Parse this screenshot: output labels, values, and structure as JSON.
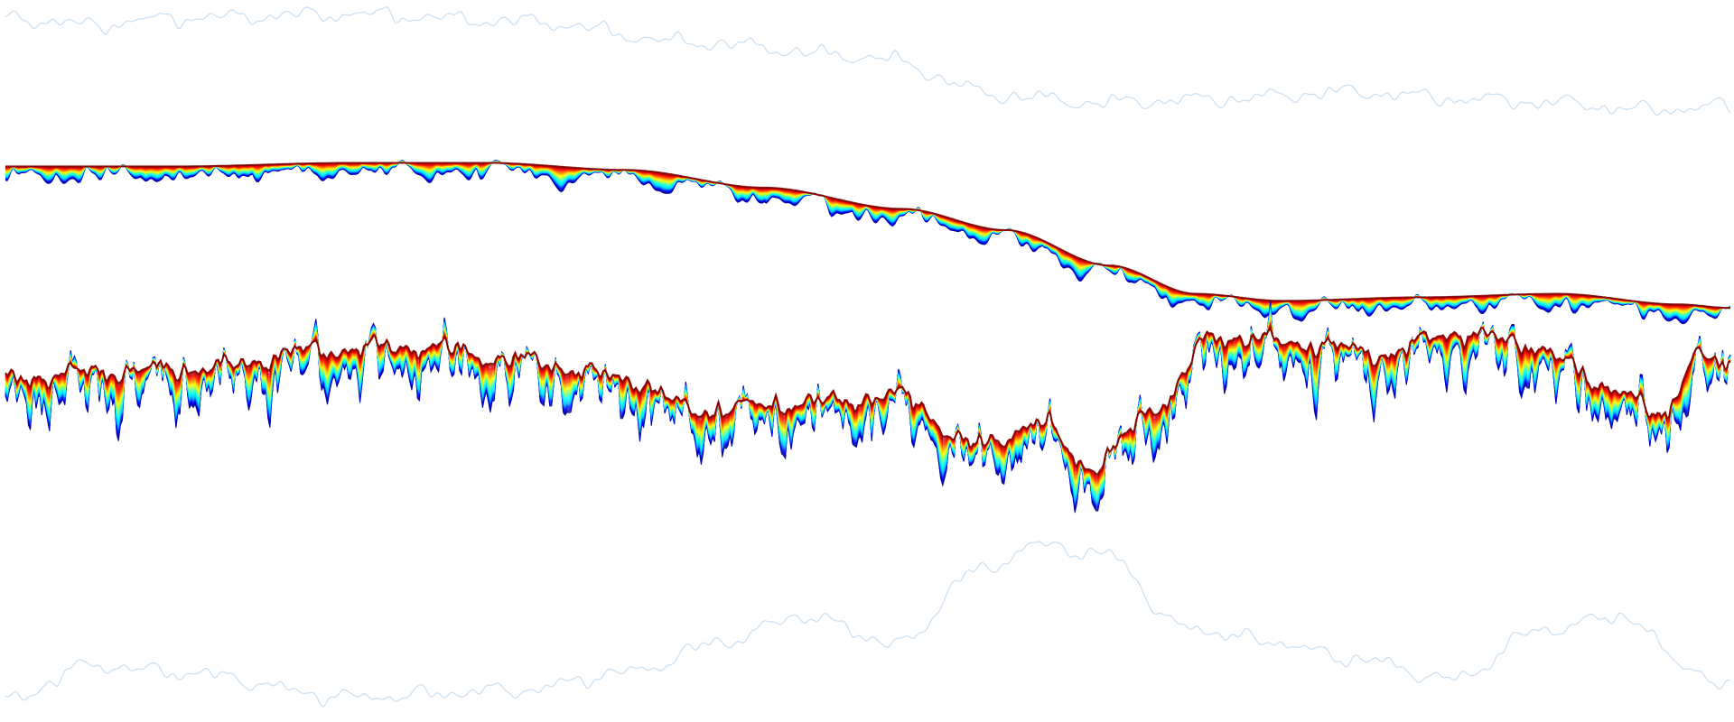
{
  "chart_data": {
    "type": "line",
    "title": "",
    "xlabel": "",
    "ylabel": "",
    "x_range": [
      0,
      1
    ],
    "y_range": [
      -1,
      1
    ],
    "grid": false,
    "legend": "none",
    "axes_visible": false,
    "colormap": "jet",
    "colormap_stops": [
      "#00007f",
      "#0000ff",
      "#00bfff",
      "#00ffff",
      "#7fff7f",
      "#ffff00",
      "#ff7f00",
      "#ff0000",
      "#7f0000"
    ],
    "background_trace_color": "#c9dff2",
    "groups": [
      {
        "name_shown": false,
        "kind": "smooth-sigmoid-band",
        "curve_count": 40,
        "trend": [
          [
            0.0,
            0.55
          ],
          [
            0.1,
            0.55
          ],
          [
            0.2,
            0.56
          ],
          [
            0.28,
            0.56
          ],
          [
            0.36,
            0.54
          ],
          [
            0.44,
            0.49
          ],
          [
            0.52,
            0.43
          ],
          [
            0.58,
            0.37
          ],
          [
            0.64,
            0.27
          ],
          [
            0.69,
            0.19
          ],
          [
            0.74,
            0.17
          ],
          [
            0.82,
            0.18
          ],
          [
            0.9,
            0.19
          ],
          [
            0.97,
            0.16
          ],
          [
            1.0,
            0.15
          ]
        ]
      },
      {
        "name_shown": false,
        "kind": "noisy-band",
        "curve_count": 40,
        "trend": [
          [
            0.0,
            -0.05
          ],
          [
            0.06,
            -0.03
          ],
          [
            0.12,
            -0.02
          ],
          [
            0.18,
            0.03
          ],
          [
            0.24,
            0.04
          ],
          [
            0.3,
            0.0
          ],
          [
            0.36,
            -0.05
          ],
          [
            0.4,
            -0.14
          ],
          [
            0.46,
            -0.12
          ],
          [
            0.52,
            -0.1
          ],
          [
            0.56,
            -0.24
          ],
          [
            0.6,
            -0.18
          ],
          [
            0.63,
            -0.3
          ],
          [
            0.67,
            -0.12
          ],
          [
            0.7,
            0.07
          ],
          [
            0.75,
            0.05
          ],
          [
            0.8,
            0.02
          ],
          [
            0.84,
            0.08
          ],
          [
            0.88,
            0.05
          ],
          [
            0.93,
            -0.07
          ],
          [
            0.96,
            -0.16
          ],
          [
            0.98,
            0.02
          ],
          [
            1.0,
            -0.03
          ]
        ]
      }
    ],
    "background_traces": [
      {
        "trend": [
          [
            0.0,
            0.97
          ],
          [
            0.05,
            0.95
          ],
          [
            0.1,
            0.97
          ],
          [
            0.2,
            0.98
          ],
          [
            0.3,
            0.96
          ],
          [
            0.4,
            0.9
          ],
          [
            0.5,
            0.86
          ],
          [
            0.58,
            0.75
          ],
          [
            0.63,
            0.73
          ],
          [
            0.7,
            0.74
          ],
          [
            0.78,
            0.76
          ],
          [
            0.85,
            0.74
          ],
          [
            0.9,
            0.73
          ],
          [
            0.95,
            0.71
          ],
          [
            1.0,
            0.72
          ]
        ]
      },
      {
        "trend": [
          [
            0.0,
            -0.96
          ],
          [
            0.05,
            -0.86
          ],
          [
            0.1,
            -0.88
          ],
          [
            0.2,
            -0.95
          ],
          [
            0.3,
            -0.93
          ],
          [
            0.36,
            -0.88
          ],
          [
            0.42,
            -0.79
          ],
          [
            0.46,
            -0.72
          ],
          [
            0.52,
            -0.8
          ],
          [
            0.56,
            -0.6
          ],
          [
            0.6,
            -0.52
          ],
          [
            0.64,
            -0.55
          ],
          [
            0.68,
            -0.75
          ],
          [
            0.73,
            -0.79
          ],
          [
            0.78,
            -0.84
          ],
          [
            0.84,
            -0.9
          ],
          [
            0.89,
            -0.76
          ],
          [
            0.94,
            -0.72
          ],
          [
            0.97,
            -0.85
          ],
          [
            1.0,
            -0.93
          ]
        ]
      }
    ]
  }
}
